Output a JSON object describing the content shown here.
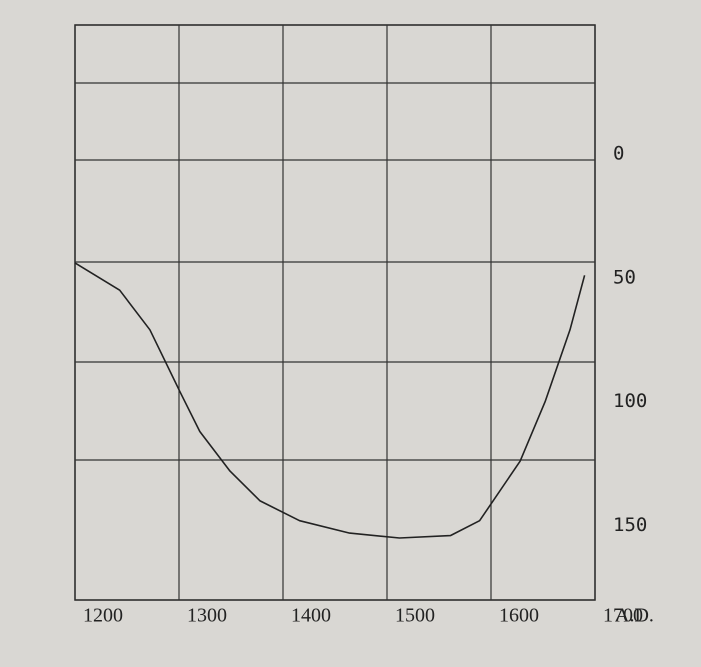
{
  "chart_data": {
    "type": "line",
    "x_label": "A.D.",
    "x": [
      1200,
      1243,
      1272,
      1301,
      1320,
      1349,
      1378,
      1416,
      1464,
      1512,
      1561,
      1589,
      1628,
      1652,
      1676,
      1690
    ],
    "series": [
      {
        "color": "#222222",
        "values": [
          44,
          55,
          71,
          96,
          112,
          128,
          140,
          148,
          153,
          155,
          154,
          148,
          124,
          100,
          71,
          49
        ]
      }
    ],
    "xlim": [
      1200,
      1700
    ],
    "xticks": [
      1200,
      1300,
      1400,
      1500,
      1600,
      1700
    ],
    "ylim": [
      -52,
      180
    ],
    "yticks": [
      0,
      50,
      100,
      150
    ],
    "y_inverted": true,
    "y_axis_side": "right",
    "grid": true
  }
}
